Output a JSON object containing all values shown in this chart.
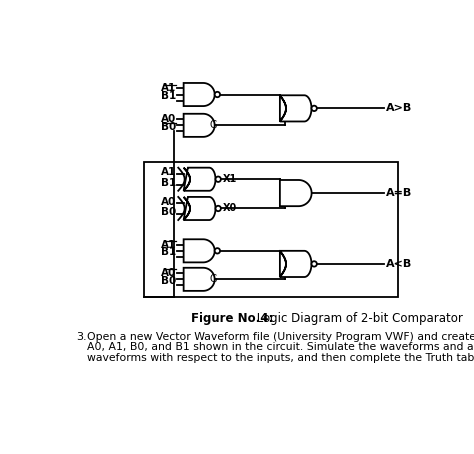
{
  "title_bold": "Figure No.4:",
  "title_normal": " Logic Diagram of 2-bit Comparator",
  "caption_line1": "Open a new Vector Waveform file (University Program VWF) and create the waveforms",
  "caption_line2": "A0, A1, B0, and B1 shown in the circuit. Simulate the waveforms and analyze the output",
  "caption_line3": "waveforms with respect to the inputs, and then complete the Truth table below.",
  "bg_color": "#ffffff",
  "fig_width": 4.74,
  "fig_height": 4.54,
  "dpi": 100
}
